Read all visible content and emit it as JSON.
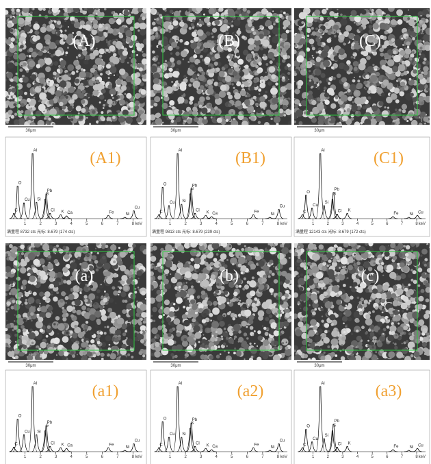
{
  "sem_panels": [
    {
      "label": "(A)",
      "scale": "30μm"
    },
    {
      "label": "(B)",
      "scale": "30μm"
    },
    {
      "label": "(C)",
      "scale": "30μm"
    },
    {
      "label": "(a)",
      "scale": "30μm"
    },
    {
      "label": "(b)",
      "scale": "30μm"
    },
    {
      "label": "(c)",
      "scale": "30μm"
    }
  ],
  "spectrum_axis": {
    "xlim": [
      0,
      8.6
    ],
    "xticks": [
      1,
      2,
      3,
      4,
      5,
      6,
      7,
      8
    ],
    "unit": "keV"
  },
  "spectra": [
    {
      "label": "(A1)",
      "footer": "满量程 8732 cts 光标: 8.679 (174 cts)",
      "peaks": [
        {
          "label": "C",
          "kev": 0.28,
          "height": 8
        },
        {
          "label": "O",
          "kev": 0.52,
          "height": 50
        },
        {
          "label": "Cu",
          "kev": 0.93,
          "height": 24
        },
        {
          "label": "Al",
          "kev": 1.49,
          "height": 100
        },
        {
          "label": "Si",
          "kev": 1.74,
          "height": 25
        },
        {
          "label": "S",
          "kev": 2.31,
          "height": 30
        },
        {
          "label": "Pb",
          "kev": 2.38,
          "height": 38
        },
        {
          "label": "Cl",
          "kev": 2.62,
          "height": 8
        },
        {
          "label": "K",
          "kev": 3.31,
          "height": 6
        },
        {
          "label": "Ca",
          "kev": 3.69,
          "height": 4
        },
        {
          "label": "Fe",
          "kev": 6.4,
          "height": 5
        },
        {
          "label": "Ni",
          "kev": 7.47,
          "height": 2
        },
        {
          "label": "Cu",
          "kev": 8.05,
          "height": 12
        }
      ]
    },
    {
      "label": "(B1)",
      "footer": "满量程 9813 cts 光标: 8.679 (239 cts)",
      "peaks": [
        {
          "label": "C",
          "kev": 0.28,
          "height": 6
        },
        {
          "label": "O",
          "kev": 0.52,
          "height": 48
        },
        {
          "label": "Cu",
          "kev": 0.93,
          "height": 20
        },
        {
          "label": "Al",
          "kev": 1.49,
          "height": 100
        },
        {
          "label": "Si",
          "kev": 1.74,
          "height": 22
        },
        {
          "label": "S",
          "kev": 2.31,
          "height": 38
        },
        {
          "label": "Pb",
          "kev": 2.38,
          "height": 46
        },
        {
          "label": "Cl",
          "kev": 2.62,
          "height": 8
        },
        {
          "label": "K",
          "kev": 3.31,
          "height": 5
        },
        {
          "label": "Ca",
          "kev": 3.69,
          "height": 3
        },
        {
          "label": "Fe",
          "kev": 6.4,
          "height": 6
        },
        {
          "label": "Ni",
          "kev": 7.47,
          "height": 2
        },
        {
          "label": "Cu",
          "kev": 8.05,
          "height": 14
        }
      ]
    },
    {
      "label": "(C1)",
      "footer": "满量程 12143 cts 光标: 8.679 (172 cts)",
      "peaks": [
        {
          "label": "C",
          "kev": 0.28,
          "height": 6
        },
        {
          "label": "O",
          "kev": 0.52,
          "height": 36
        },
        {
          "label": "Cu",
          "kev": 0.93,
          "height": 16
        },
        {
          "label": "Al",
          "kev": 1.49,
          "height": 100
        },
        {
          "label": "Si",
          "kev": 1.74,
          "height": 20
        },
        {
          "label": "S",
          "kev": 2.31,
          "height": 30
        },
        {
          "label": "Pb",
          "kev": 2.38,
          "height": 40
        },
        {
          "label": "Cl",
          "kev": 2.62,
          "height": 7
        },
        {
          "label": "K",
          "kev": 3.31,
          "height": 8
        },
        {
          "label": "Fe",
          "kev": 6.4,
          "height": 3
        },
        {
          "label": "Ni",
          "kev": 7.47,
          "height": 2
        },
        {
          "label": "Cu",
          "kev": 8.05,
          "height": 5
        }
      ]
    },
    {
      "label": "(a1)",
      "peaks": [
        {
          "label": "C",
          "kev": 0.28,
          "height": 7
        },
        {
          "label": "O",
          "kev": 0.52,
          "height": 50
        },
        {
          "label": "Cu",
          "kev": 0.93,
          "height": 26
        },
        {
          "label": "Al",
          "kev": 1.49,
          "height": 100
        },
        {
          "label": "Si",
          "kev": 1.74,
          "height": 26
        },
        {
          "label": "S",
          "kev": 2.31,
          "height": 32
        },
        {
          "label": "Pb",
          "kev": 2.38,
          "height": 40
        },
        {
          "label": "Cl",
          "kev": 2.62,
          "height": 8
        },
        {
          "label": "K",
          "kev": 3.31,
          "height": 6
        },
        {
          "label": "Ca",
          "kev": 3.69,
          "height": 5
        },
        {
          "label": "Fe",
          "kev": 6.4,
          "height": 6
        },
        {
          "label": "Ni",
          "kev": 7.47,
          "height": 2
        },
        {
          "label": "Cu",
          "kev": 8.05,
          "height": 12
        }
      ]
    },
    {
      "label": "(a2)",
      "peaks": [
        {
          "label": "C",
          "kev": 0.28,
          "height": 6
        },
        {
          "label": "O",
          "kev": 0.52,
          "height": 46
        },
        {
          "label": "Cu",
          "kev": 0.93,
          "height": 22
        },
        {
          "label": "Al",
          "kev": 1.49,
          "height": 100
        },
        {
          "label": "Si",
          "kev": 1.74,
          "height": 22
        },
        {
          "label": "S",
          "kev": 2.31,
          "height": 36
        },
        {
          "label": "Pb",
          "kev": 2.38,
          "height": 44
        },
        {
          "label": "Cl",
          "kev": 2.62,
          "height": 8
        },
        {
          "label": "K",
          "kev": 3.31,
          "height": 5
        },
        {
          "label": "Ca",
          "kev": 3.69,
          "height": 3
        },
        {
          "label": "Fe",
          "kev": 6.4,
          "height": 6
        },
        {
          "label": "Ni",
          "kev": 7.47,
          "height": 2
        },
        {
          "label": "Cu",
          "kev": 8.05,
          "height": 12
        }
      ]
    },
    {
      "label": "(a3)",
      "peaks": [
        {
          "label": "C",
          "kev": 0.28,
          "height": 6
        },
        {
          "label": "O",
          "kev": 0.52,
          "height": 34
        },
        {
          "label": "Cu",
          "kev": 0.93,
          "height": 15
        },
        {
          "label": "Al",
          "kev": 1.49,
          "height": 100
        },
        {
          "label": "Si",
          "kev": 1.74,
          "height": 20
        },
        {
          "label": "S",
          "kev": 2.31,
          "height": 32
        },
        {
          "label": "Pb",
          "kev": 2.38,
          "height": 42
        },
        {
          "label": "Cl",
          "kev": 2.62,
          "height": 7
        },
        {
          "label": "K",
          "kev": 3.31,
          "height": 8
        },
        {
          "label": "Fe",
          "kev": 6.4,
          "height": 3
        },
        {
          "label": "Ni",
          "kev": 7.47,
          "height": 2
        },
        {
          "label": "Cu",
          "kev": 8.05,
          "height": 5
        }
      ]
    }
  ]
}
